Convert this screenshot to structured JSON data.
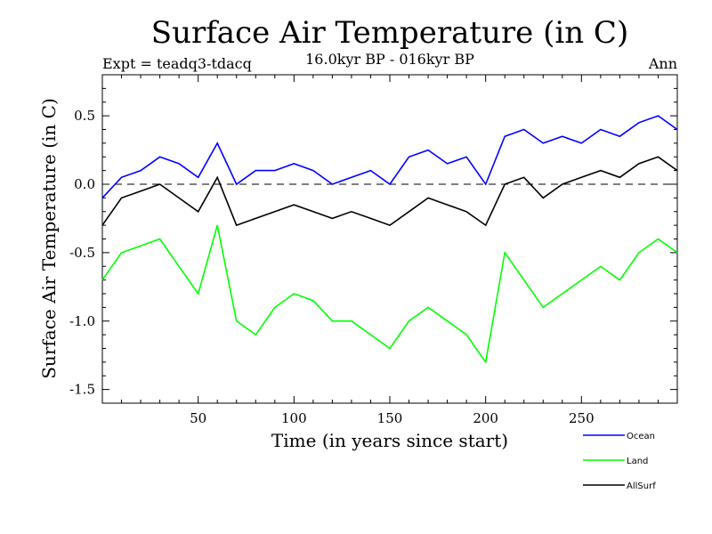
{
  "chart_data": {
    "type": "line",
    "title": "Surface Air Temperature (in C)",
    "subtitle": "16.0kyr BP - 016kyr BP",
    "experiment_label": "Expt = teadq3-tdacq",
    "period_label": "Ann",
    "xlabel": "Time (in years since start)",
    "ylabel": "Surface Air Temperature (in C)",
    "xlim": [
      0,
      300
    ],
    "ylim": [
      -1.6,
      0.8
    ],
    "x_ticks": [
      50,
      100,
      150,
      200,
      250
    ],
    "x_tick_labels": [
      "50",
      "100",
      "150",
      "200",
      "250"
    ],
    "y_ticks": [
      -1.5,
      -1.0,
      -0.5,
      0.0,
      0.5
    ],
    "y_tick_labels": [
      "-1.5",
      "-1.0",
      "-0.5",
      "0.0",
      "0.5"
    ],
    "zero_line": true,
    "x": [
      0,
      10,
      20,
      30,
      40,
      50,
      60,
      70,
      80,
      90,
      100,
      110,
      120,
      130,
      140,
      150,
      160,
      170,
      180,
      190,
      200,
      210,
      220,
      230,
      240,
      250,
      260,
      270,
      280,
      290,
      300
    ],
    "series": [
      {
        "name": "Ocean",
        "color": "#0000ff",
        "values": [
          -0.1,
          0.05,
          0.1,
          0.2,
          0.15,
          0.05,
          0.3,
          0.0,
          0.1,
          0.1,
          0.15,
          0.1,
          0.0,
          0.05,
          0.1,
          0.0,
          0.2,
          0.25,
          0.15,
          0.2,
          0.0,
          0.35,
          0.4,
          0.3,
          0.35,
          0.3,
          0.4,
          0.35,
          0.45,
          0.5,
          0.4
        ]
      },
      {
        "name": "Land",
        "color": "#00ff00",
        "values": [
          -0.7,
          -0.5,
          -0.45,
          -0.4,
          -0.6,
          -0.8,
          -0.3,
          -1.0,
          -1.1,
          -0.9,
          -0.8,
          -0.85,
          -1.0,
          -1.0,
          -1.1,
          -1.2,
          -1.0,
          -0.9,
          -1.0,
          -1.1,
          -1.3,
          -0.5,
          -0.7,
          -0.9,
          -0.8,
          -0.7,
          -0.6,
          -0.7,
          -0.5,
          -0.4,
          -0.5
        ]
      },
      {
        "name": "AllSurf",
        "color": "#000000",
        "values": [
          -0.3,
          -0.1,
          -0.05,
          0.0,
          -0.1,
          -0.2,
          0.05,
          -0.3,
          -0.25,
          -0.2,
          -0.15,
          -0.2,
          -0.25,
          -0.2,
          -0.25,
          -0.3,
          -0.2,
          -0.1,
          -0.15,
          -0.2,
          -0.3,
          0.0,
          0.05,
          -0.1,
          0.0,
          0.05,
          0.1,
          0.05,
          0.15,
          0.2,
          0.1
        ]
      }
    ],
    "legend_position": "bottom-right"
  }
}
